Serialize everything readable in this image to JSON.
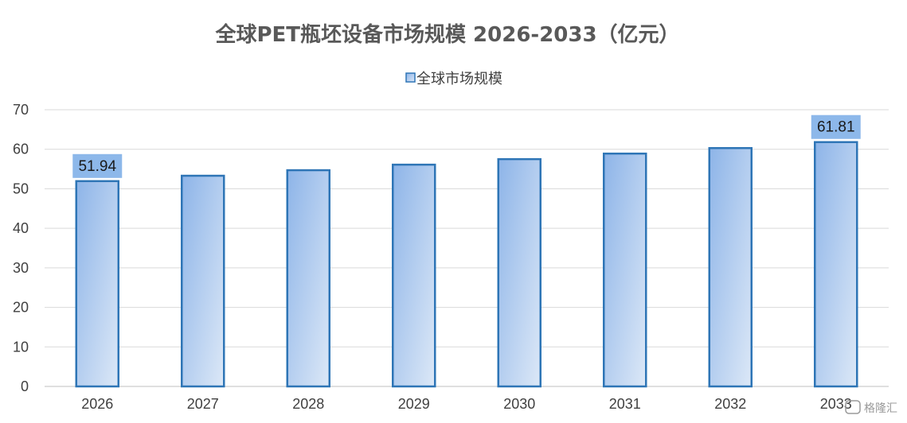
{
  "chart_data": {
    "type": "bar",
    "title": "全球PET瓶坯设备市场规模 2026-2033（亿元）",
    "legend": {
      "label": "全球市场规模",
      "placement": "top-center"
    },
    "categories": [
      "2026",
      "2027",
      "2028",
      "2029",
      "2030",
      "2031",
      "2032",
      "2033"
    ],
    "series": [
      {
        "name": "全球市场规模",
        "values": [
          51.94,
          53.3,
          54.7,
          56.1,
          57.5,
          58.9,
          60.3,
          61.81
        ]
      }
    ],
    "data_labels": [
      {
        "category": "2026",
        "text": "51.94"
      },
      {
        "category": "2033",
        "text": "61.81"
      }
    ],
    "ylim": [
      0,
      70
    ],
    "yticks": [
      "0",
      "10",
      "20",
      "30",
      "40",
      "50",
      "60",
      "70"
    ],
    "grid": true,
    "colors": {
      "bar_border": "#2E75B6",
      "bar_fill_top": "#8DB4E8",
      "bar_fill_bottom": "#DCE8F7",
      "label_bg": "#8DB8EA",
      "grid": "#D9D9D9"
    }
  },
  "watermark": "格隆汇"
}
